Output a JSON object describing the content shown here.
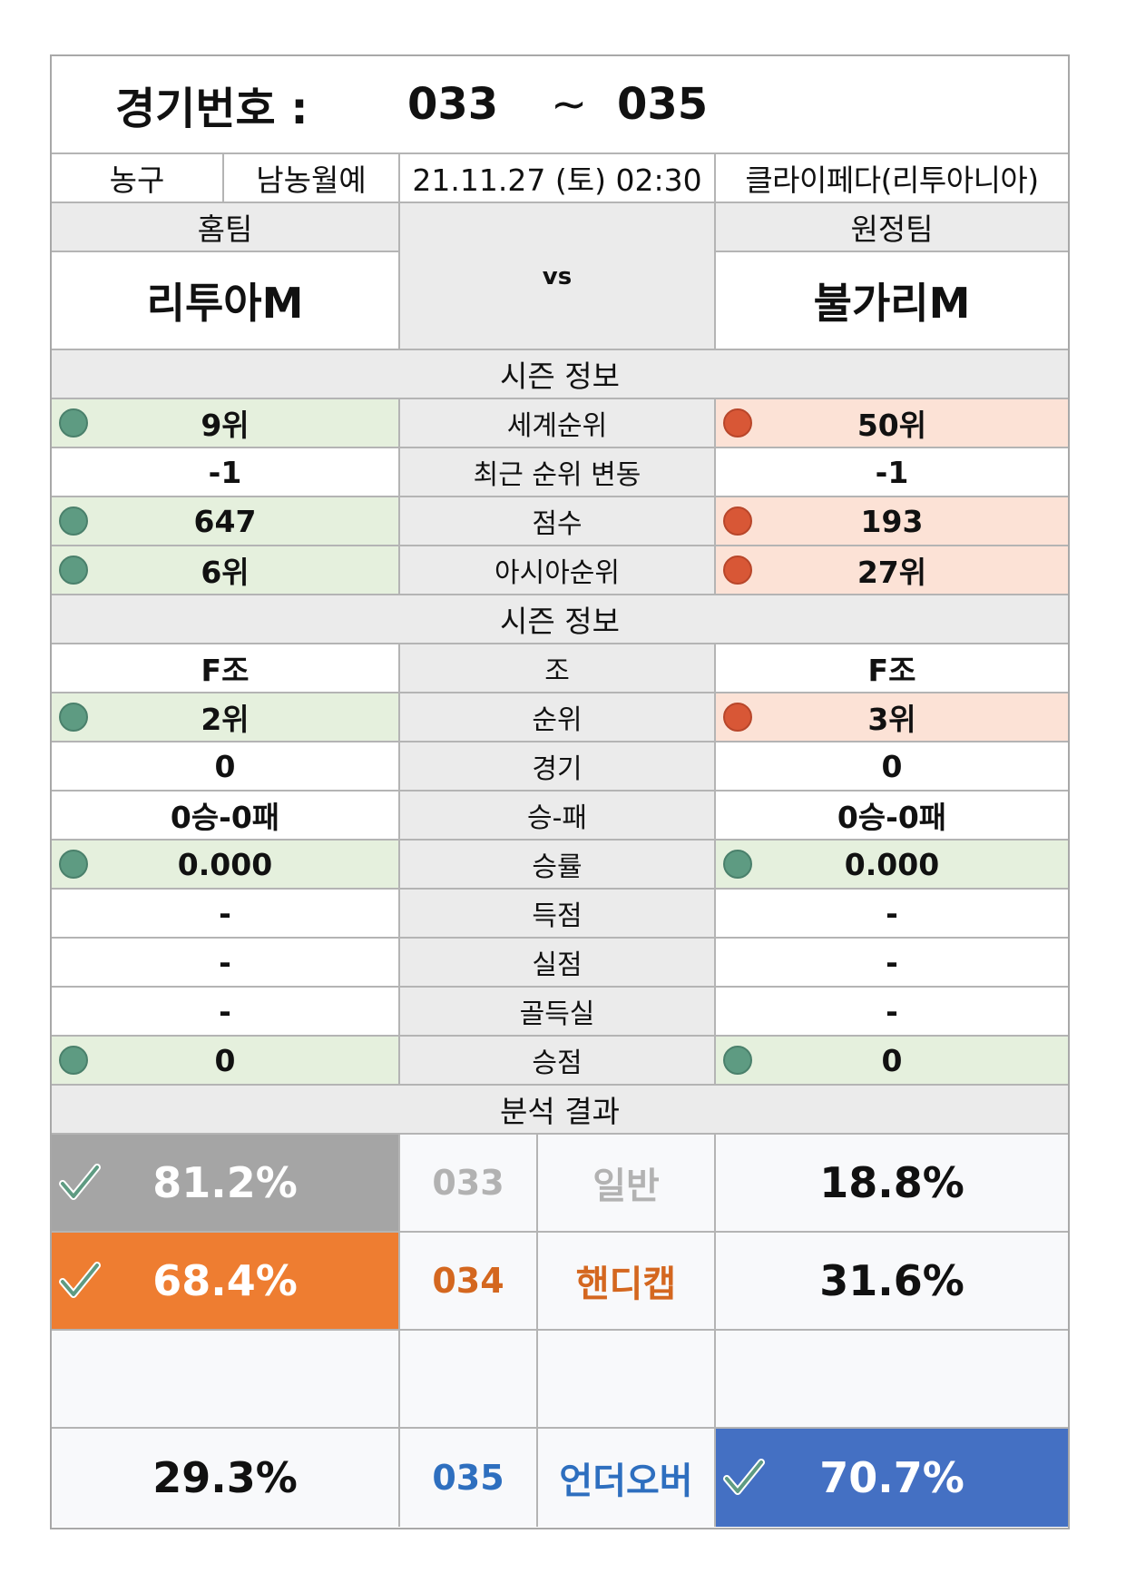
{
  "header": {
    "title_label": "경기번호 :",
    "range_start": "033",
    "range_sep": "~",
    "range_end": "035"
  },
  "info": {
    "sport": "농구",
    "league": "남농월예",
    "datetime": "21.11.27 (토) 02:30",
    "venue": "클라이페다(리투아니아)"
  },
  "teams": {
    "home_label": "홈팀",
    "away_label": "원정팀",
    "vs": "vs",
    "home_name": "리투아M",
    "away_name": "불가리M"
  },
  "section1": {
    "title": "시즌 정보",
    "rows": [
      {
        "label": "세계순위",
        "home": "9위",
        "away": "50위",
        "home_ind": "green",
        "away_ind": "red"
      },
      {
        "label": "최근 순위 변동",
        "home": "-1",
        "away": "-1",
        "home_ind": "",
        "away_ind": ""
      },
      {
        "label": "점수",
        "home": "647",
        "away": "193",
        "home_ind": "green",
        "away_ind": "red"
      },
      {
        "label": "아시아순위",
        "home": "6위",
        "away": "27위",
        "home_ind": "green",
        "away_ind": "red"
      }
    ]
  },
  "section2": {
    "title": "시즌 정보",
    "rows": [
      {
        "label": "조",
        "home": "F조",
        "away": "F조",
        "home_ind": "",
        "away_ind": ""
      },
      {
        "label": "순위",
        "home": "2위",
        "away": "3위",
        "home_ind": "green",
        "away_ind": "red"
      },
      {
        "label": "경기",
        "home": "0",
        "away": "0",
        "home_ind": "",
        "away_ind": ""
      },
      {
        "label": "승-패",
        "home": "0승-0패",
        "away": "0승-0패",
        "home_ind": "",
        "away_ind": ""
      },
      {
        "label": "승률",
        "home": "0.000",
        "away": "0.000",
        "home_ind": "green",
        "away_ind": "green"
      },
      {
        "label": "득점",
        "home": "-",
        "away": "-",
        "home_ind": "",
        "away_ind": ""
      },
      {
        "label": "실점",
        "home": "-",
        "away": "-",
        "home_ind": "",
        "away_ind": ""
      },
      {
        "label": "골득실",
        "home": "-",
        "away": "-",
        "home_ind": "",
        "away_ind": ""
      },
      {
        "label": "승점",
        "home": "0",
        "away": "0",
        "home_ind": "green",
        "away_ind": "green"
      }
    ]
  },
  "analysis": {
    "title": "분석 결과",
    "rows": [
      {
        "code": "033",
        "type": "일반",
        "home_pct": "81.2%",
        "away_pct": "18.8%",
        "pick": "home",
        "style": "normal"
      },
      {
        "code": "034",
        "type": "핸디캡",
        "home_pct": "68.4%",
        "away_pct": "31.6%",
        "pick": "home",
        "style": "handicap"
      },
      {
        "code": "",
        "type": "",
        "home_pct": "",
        "away_pct": "",
        "pick": "",
        "style": "empty"
      },
      {
        "code": "035",
        "type": "언더오버",
        "home_pct": "29.3%",
        "away_pct": "70.7%",
        "pick": "away",
        "style": "overunder"
      }
    ]
  },
  "colors": {
    "green_row": "#e5f0dd",
    "peach_row": "#fce2d6",
    "gray_band": "#ebebeb",
    "green_dot": "#5e9b82",
    "red_dot": "#d85736",
    "pick_gray": "#a5a5a5",
    "pick_orange": "#ee7d31",
    "pick_blue": "#4470c3"
  },
  "icons": {
    "indicator": "circle-indicator-icon",
    "pick": "checkmark-icon"
  }
}
